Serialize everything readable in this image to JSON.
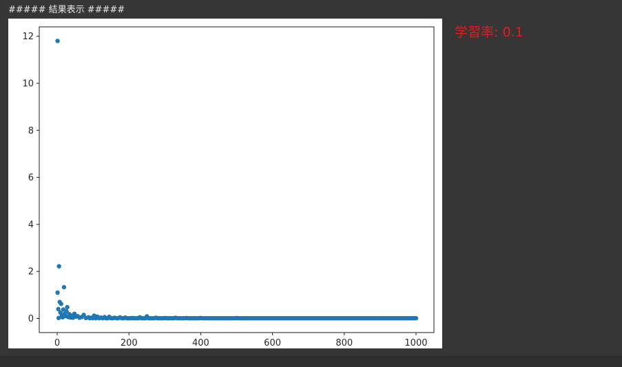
{
  "output": {
    "header_text": "##### 結果表示 #####",
    "learning_rate_label": "学習率: 0.1"
  },
  "colors": {
    "background": "#363636",
    "point": "#1f77b4",
    "label": "#e21d1d"
  },
  "chart_data": {
    "type": "scatter",
    "title": "",
    "xlabel": "",
    "ylabel": "",
    "xlim": [
      -50,
      1050
    ],
    "ylim": [
      -0.6,
      12.4
    ],
    "grid": false,
    "xticks": [
      0,
      200,
      400,
      600,
      800,
      1000
    ],
    "yticks": [
      0,
      2,
      4,
      6,
      8,
      10,
      12
    ],
    "points": [
      [
        1,
        11.8
      ],
      [
        1,
        1.1
      ],
      [
        3,
        0.4
      ],
      [
        4,
        0.02
      ],
      [
        5,
        2.22
      ],
      [
        7,
        0.7
      ],
      [
        9,
        0.25
      ],
      [
        11,
        0.62
      ],
      [
        13,
        0.12
      ],
      [
        15,
        0.05
      ],
      [
        17,
        0.38
      ],
      [
        19,
        1.33
      ],
      [
        21,
        0.2
      ],
      [
        23,
        0.1
      ],
      [
        26,
        0.3
      ],
      [
        28,
        0.48
      ],
      [
        31,
        0.06
      ],
      [
        34,
        0.18
      ],
      [
        37,
        0.04
      ],
      [
        40,
        0.12
      ],
      [
        44,
        0.03
      ],
      [
        48,
        0.2
      ],
      [
        52,
        0.08
      ],
      [
        57,
        0.1
      ],
      [
        62,
        0.03
      ],
      [
        68,
        0.06
      ],
      [
        74,
        0.15
      ],
      [
        80,
        0.02
      ],
      [
        87,
        0.05
      ],
      [
        95,
        0.03
      ],
      [
        103,
        0.12
      ],
      [
        112,
        0.08
      ],
      [
        122,
        0.04
      ],
      [
        132,
        0.06
      ],
      [
        145,
        0.07
      ],
      [
        160,
        0.03
      ],
      [
        175,
        0.05
      ],
      [
        190,
        0.04
      ],
      [
        210,
        0.02
      ],
      [
        230,
        0.05
      ],
      [
        250,
        0.09
      ],
      [
        275,
        0.03
      ],
      [
        300,
        0.02
      ],
      [
        330,
        0.03
      ],
      [
        360,
        0.02
      ],
      [
        400,
        0.02
      ],
      [
        450,
        0.01
      ],
      [
        500,
        0.02
      ],
      [
        550,
        0.01
      ],
      [
        600,
        0.01
      ],
      [
        650,
        0.01
      ],
      [
        700,
        0.01
      ],
      [
        750,
        0.01
      ],
      [
        800,
        0.01
      ],
      [
        850,
        0.01
      ],
      [
        900,
        0.01
      ],
      [
        950,
        0.01
      ],
      [
        1000,
        0.01
      ]
    ]
  }
}
